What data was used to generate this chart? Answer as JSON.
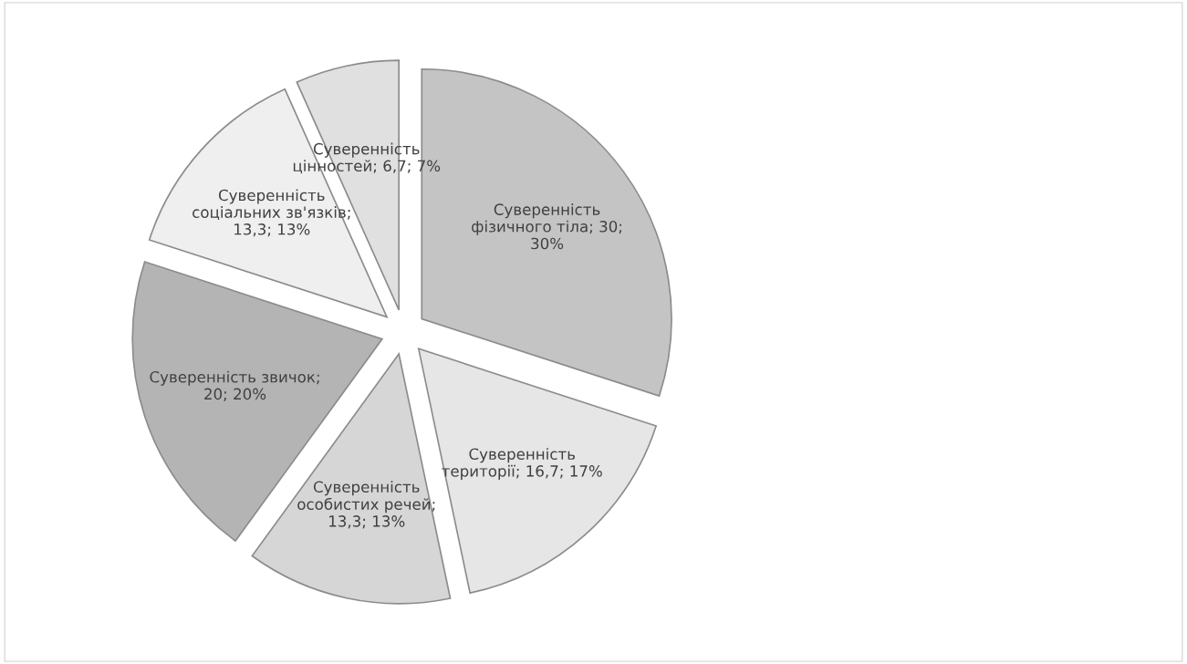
{
  "chart_data": {
    "type": "pie",
    "categories": [
      "Суверенність фізичного тіла",
      "Суверенність території",
      "Суверенність особистих речей",
      "Суверенність звичок",
      "Суверенність соціальних зв'язків",
      "Суверенність цінностей"
    ],
    "values": [
      30,
      16.7,
      13.3,
      20,
      13.3,
      6.7
    ],
    "value_labels": [
      "; 30; 30%",
      "; 16,7; 17%",
      "; 13,3; 13%",
      "; 20; 20%",
      "; 13,3; 13%",
      "; 6,7; 7%"
    ],
    "colors": [
      "#c4c4c4",
      "#e6e6e6",
      "#d6d6d6",
      "#b4b4b4",
      "#efefef",
      "#e0e0e0"
    ],
    "legend": false
  }
}
